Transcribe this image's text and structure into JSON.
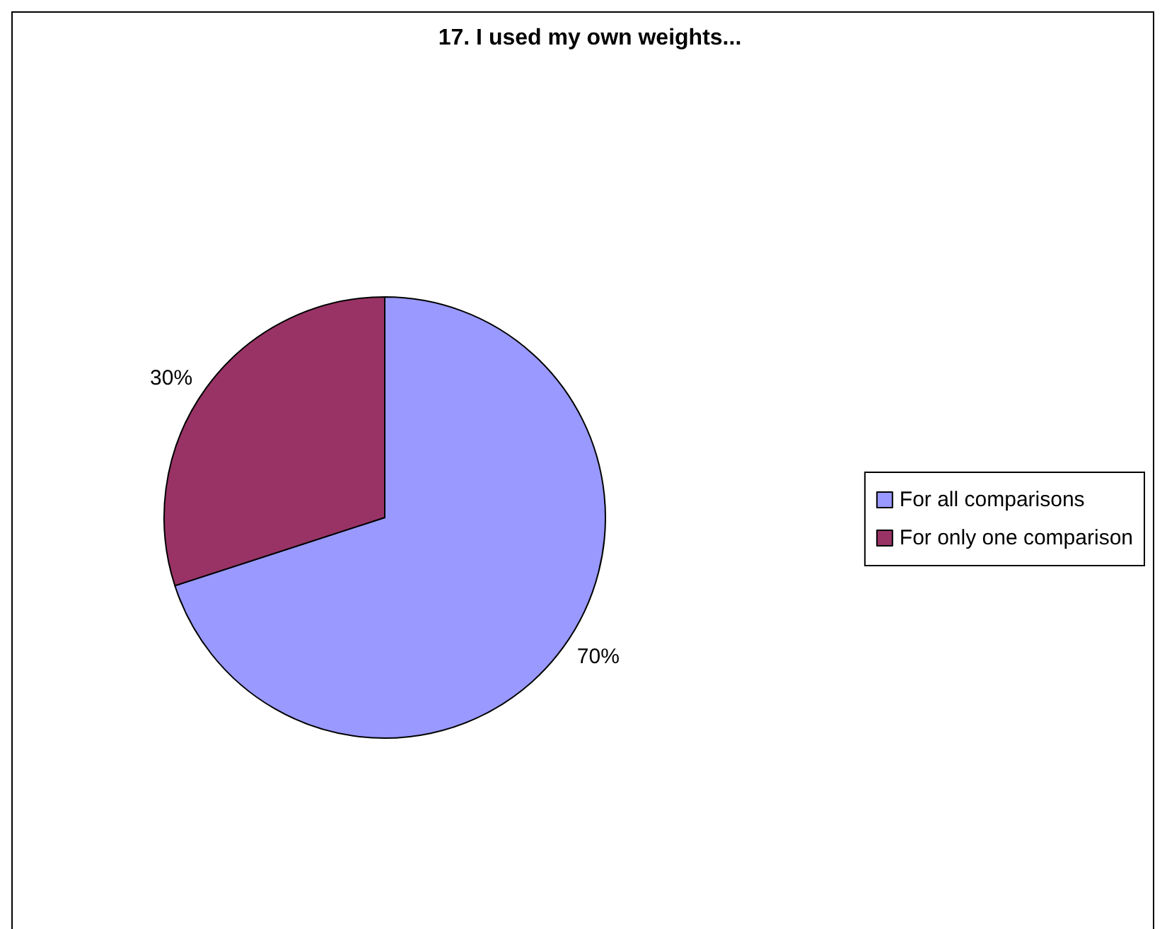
{
  "chart_data": {
    "type": "pie",
    "title": "17. I used my own weights...",
    "categories": [
      "For all comparisons",
      "For only one comparison"
    ],
    "values": [
      70,
      30
    ],
    "colors": [
      "#9999ff",
      "#993366"
    ],
    "value_labels": [
      "70%",
      "30%"
    ],
    "legend": "right"
  }
}
